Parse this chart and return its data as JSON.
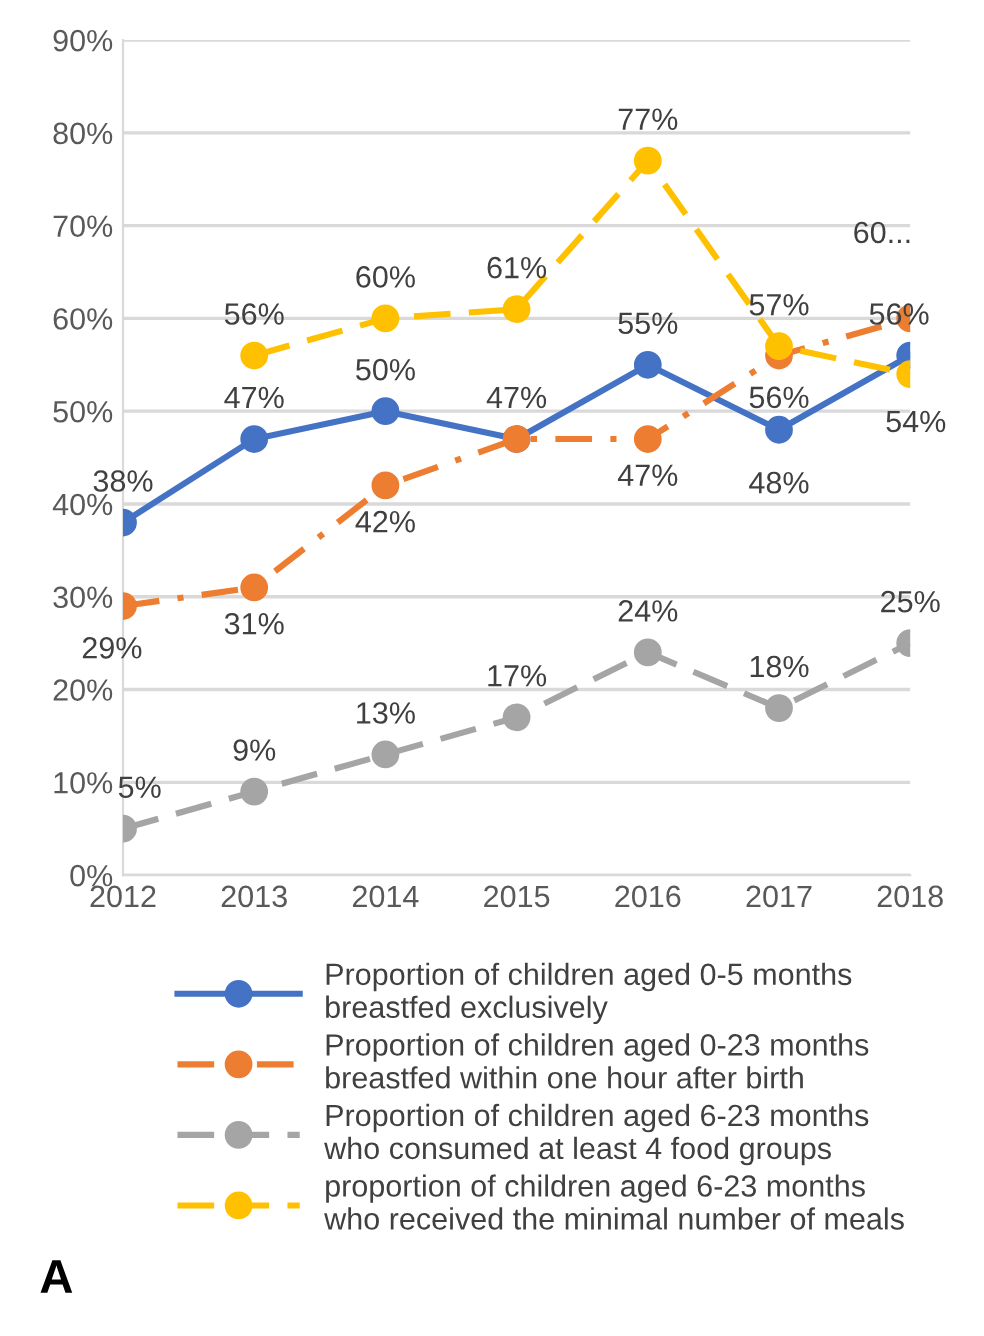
{
  "chart_data": {
    "type": "line",
    "categories": [
      "2012",
      "2013",
      "2014",
      "2015",
      "2016",
      "2017",
      "2018"
    ],
    "series": [
      {
        "name": "Proportion of children aged 0-5 months breastfed exclusively",
        "color": "#4472c4",
        "line_style": "solid",
        "values": [
          38,
          47,
          50,
          47,
          55,
          48,
          56
        ],
        "value_labels": [
          "38%",
          "47%",
          "50%",
          "47%",
          "55%",
          "48%",
          "56%"
        ]
      },
      {
        "name": "Proportion of children aged 0-23 months breastfed within one hour after birth",
        "color": "#ed7d31",
        "line_style": "dashdot",
        "values": [
          29,
          31,
          42,
          47,
          47,
          56,
          60
        ],
        "value_labels": [
          "29%",
          "31%",
          "42%",
          null,
          "47%",
          "56%",
          "60..."
        ]
      },
      {
        "name": "Proportion of children aged 6-23 months who consumed at least 4 food groups",
        "color": "#a5a5a5",
        "line_style": "dashed",
        "values": [
          5,
          9,
          13,
          17,
          24,
          18,
          25
        ],
        "value_labels": [
          "5%",
          "9%",
          "13%",
          "17%",
          "24%",
          "18%",
          "25%"
        ]
      },
      {
        "name": "proportion of children aged 6-23 months who received the minimal number of meals",
        "color": "#ffc000",
        "line_style": "dashed",
        "values": [
          null,
          56,
          60,
          61,
          77,
          57,
          54
        ],
        "value_labels": [
          null,
          "56%",
          "60%",
          "61%",
          "77%",
          "57%",
          "54%"
        ]
      }
    ],
    "ylim": [
      0,
      90
    ],
    "yticks": [
      {
        "value": 0,
        "label": "0%"
      },
      {
        "value": 10,
        "label": "10%"
      },
      {
        "value": 20,
        "label": "20%"
      },
      {
        "value": 30,
        "label": "30%"
      },
      {
        "value": 40,
        "label": "40%"
      },
      {
        "value": 50,
        "label": "50%"
      },
      {
        "value": 60,
        "label": "60%"
      },
      {
        "value": 70,
        "label": "70%"
      },
      {
        "value": 80,
        "label": "80%"
      },
      {
        "value": 90,
        "label": "90%"
      }
    ],
    "grid": "y",
    "legend": "bottom",
    "marker": "circle",
    "annotations": [
      "A"
    ]
  }
}
